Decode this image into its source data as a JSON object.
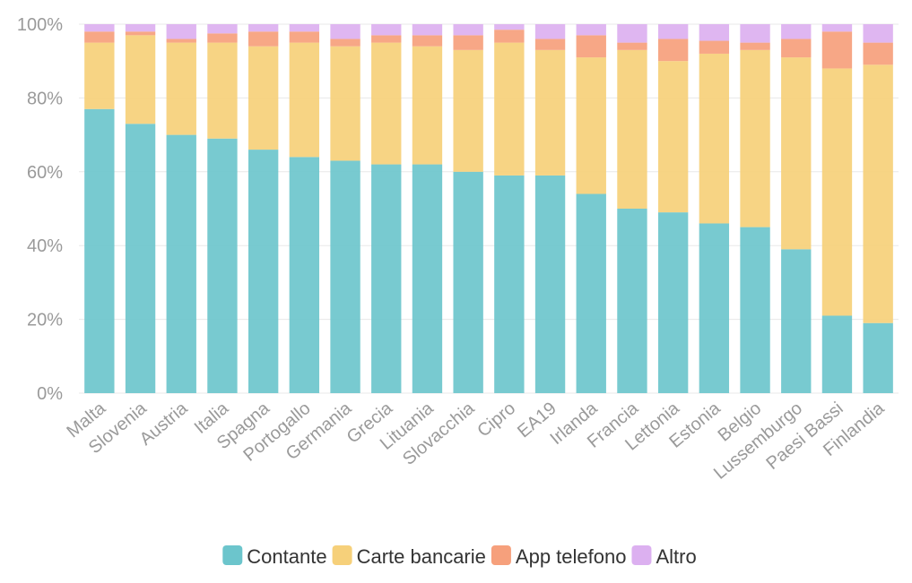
{
  "chart_data": {
    "type": "bar",
    "stacked": true,
    "title": "",
    "xlabel": "",
    "ylabel": "",
    "ylim": [
      0,
      100
    ],
    "yticks": [
      "0%",
      "20%",
      "40%",
      "60%",
      "80%",
      "100%"
    ],
    "grid": true,
    "legend_position": "bottom",
    "categories": [
      "Malta",
      "Slovenia",
      "Austria",
      "Italia",
      "Spagna",
      "Portogallo",
      "Germania",
      "Grecia",
      "Lituania",
      "Slovacchia",
      "Cipro",
      "EA19",
      "Irlanda",
      "Francia",
      "Lettonia",
      "Estonia",
      "Belgio",
      "Lussemburgo",
      "Paesi Bassi",
      "Finlandia"
    ],
    "series": [
      {
        "name": "Contante",
        "color": "#6cc5cc",
        "values": [
          77,
          73,
          70,
          69,
          66,
          64,
          63,
          62,
          62,
          60,
          59,
          59,
          54,
          50,
          49,
          46,
          45,
          39,
          21,
          19
        ]
      },
      {
        "name": "Carte bancarie",
        "color": "#f6d07a",
        "values": [
          18,
          24,
          25,
          26,
          28,
          31,
          31,
          33,
          32,
          33,
          36,
          34,
          37,
          43,
          41,
          46,
          48,
          52,
          67,
          70
        ]
      },
      {
        "name": "App telefono",
        "color": "#f6a07c",
        "values": [
          3,
          1,
          1,
          2.5,
          4,
          3,
          2,
          2,
          3,
          4,
          3.5,
          3,
          6,
          2,
          6,
          3.5,
          2,
          5,
          10,
          6
        ]
      },
      {
        "name": "Altro",
        "color": "#dcb0f0",
        "values": [
          2,
          2,
          4,
          2.5,
          2,
          2,
          4,
          3,
          3,
          3,
          1.5,
          4,
          3,
          5,
          4,
          4.5,
          5,
          4,
          2,
          5
        ]
      }
    ]
  }
}
